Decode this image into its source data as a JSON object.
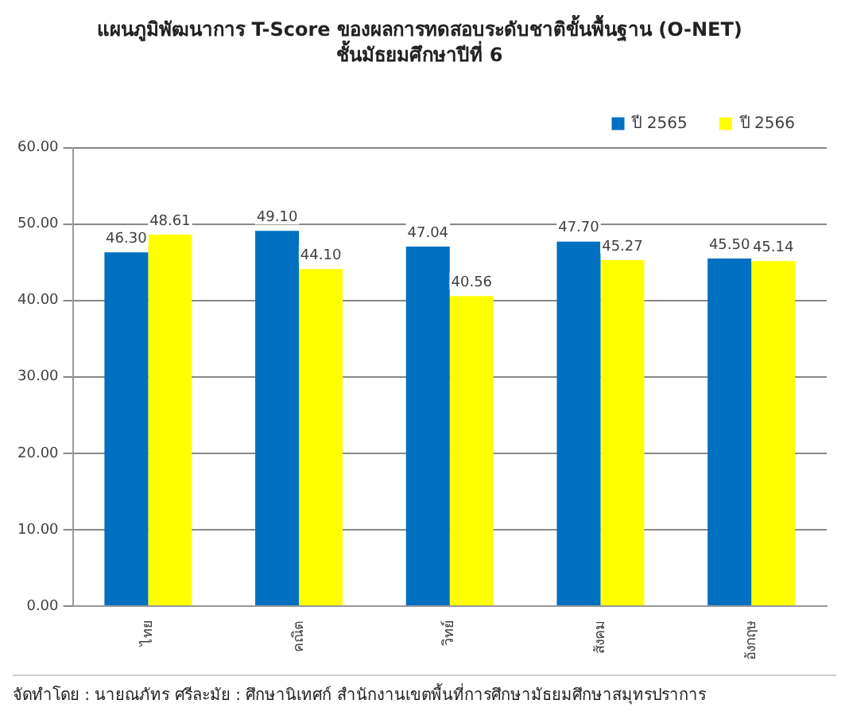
{
  "chart_data": {
    "type": "bar",
    "title": "แผนภูมิพัฒนาการ T-Score ของผลการทดสอบระดับชาติขั้นพื้นฐาน (O-NET)",
    "subtitle": "ชั้นมัธยมศึกษาปีที่ 6",
    "categories": [
      "ไทย",
      "คณิต",
      "วิทย์",
      "สังคม",
      "อังกฤษ"
    ],
    "series": [
      {
        "name": "ปี 2565",
        "color": "#0070c0",
        "values": [
          46.3,
          49.1,
          47.04,
          47.7,
          45.5
        ],
        "value_labels": [
          "46.30",
          "49.10",
          "47.04",
          "47.70",
          "45.50"
        ]
      },
      {
        "name": "ปี 2566",
        "color": "#ffff00",
        "values": [
          48.61,
          44.1,
          40.56,
          45.27,
          45.14
        ],
        "value_labels": [
          "48.61",
          "44.10",
          "40.56",
          "45.27",
          "45.14"
        ]
      }
    ],
    "ylim": [
      0,
      60
    ],
    "yticks": [
      {
        "value": 0,
        "label": "0.00"
      },
      {
        "value": 10,
        "label": "10.00"
      },
      {
        "value": 20,
        "label": "20.00"
      },
      {
        "value": 30,
        "label": "30.00"
      },
      {
        "value": 40,
        "label": "40.00"
      },
      {
        "value": 50,
        "label": "50.00"
      },
      {
        "value": 60,
        "label": "60.00"
      }
    ],
    "grid": "y",
    "legend": "top right",
    "annotations": [
      "จัดทำโดย : นายณภัทร ศรีละมัย : ศึกษานิเทศก์ สำนักงานเขตพื้นที่การศึกษามัธยมศึกษาสมุทรปราการ"
    ]
  }
}
